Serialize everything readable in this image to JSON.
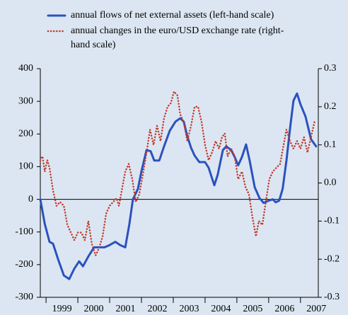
{
  "chart_data": {
    "type": "line",
    "xlim": [
      1998.82,
      2007.56
    ],
    "xticks": [
      {
        "value": 1999.5,
        "label": "1999"
      },
      {
        "value": 2000.5,
        "label": "2000"
      },
      {
        "value": 2001.5,
        "label": "2001"
      },
      {
        "value": 2002.5,
        "label": "2002"
      },
      {
        "value": 2003.5,
        "label": "2003"
      },
      {
        "value": 2004.5,
        "label": "2004"
      },
      {
        "value": 2005.5,
        "label": "2005"
      },
      {
        "value": 2006.5,
        "label": "2006"
      },
      {
        "value": 2007.5,
        "label": "2007"
      }
    ],
    "ylim": [
      -300,
      400
    ],
    "yticks": [
      -300,
      -200,
      -100,
      0,
      100,
      200,
      300,
      400
    ],
    "y2lim": [
      -0.3,
      0.3
    ],
    "y2ticks": [
      -0.3,
      -0.2,
      -0.1,
      {
        "value": 0,
        "label": "0.0"
      },
      0.1,
      0.2,
      0.3
    ],
    "series": [
      {
        "name": "annual flows of net external assets (left-hand scale)",
        "color": "#2a52be",
        "style": "solid",
        "x": [
          1998.82,
          1998.96,
          1999.11,
          1999.22,
          1999.38,
          1999.56,
          1999.73,
          1999.89,
          2000.04,
          2000.16,
          2000.33,
          2000.51,
          2000.67,
          2000.84,
          2001.0,
          2001.18,
          2001.33,
          2001.49,
          2001.62,
          2001.73,
          2001.89,
          2002.0,
          2002.16,
          2002.29,
          2002.4,
          2002.56,
          2002.71,
          2002.89,
          2003.07,
          2003.22,
          2003.33,
          2003.44,
          2003.56,
          2003.67,
          2003.82,
          2004.0,
          2004.11,
          2004.29,
          2004.4,
          2004.56,
          2004.67,
          2004.82,
          2004.93,
          2005.04,
          2005.16,
          2005.29,
          2005.4,
          2005.56,
          2005.71,
          2005.84,
          2006.0,
          2006.13,
          2006.22,
          2006.33,
          2006.44,
          2006.56,
          2006.67,
          2006.78,
          2006.89,
          2007.0,
          2007.16,
          2007.33,
          2007.49
        ],
        "values": [
          0,
          -75,
          -130,
          -136,
          -184,
          -233,
          -244,
          -212,
          -190,
          -205,
          -175,
          -147,
          -147,
          -147,
          -140,
          -130,
          -140,
          -147,
          -76,
          0,
          32,
          86,
          151,
          147,
          119,
          119,
          162,
          210,
          238,
          248,
          238,
          194,
          158,
          134,
          114,
          114,
          97,
          43,
          76,
          151,
          162,
          151,
          130,
          104,
          130,
          168,
          119,
          37,
          4,
          -11,
          -4,
          0,
          -9,
          -4,
          32,
          119,
          216,
          302,
          324,
          291,
          253,
          184,
          162
        ]
      },
      {
        "name": "annual changes in the euro/USD exchange rate (right-hand scale)",
        "color": "#c0392b",
        "style": "dotted",
        "axis": "y2",
        "x": [
          1998.82,
          1998.89,
          1998.96,
          1999.04,
          1999.11,
          1999.22,
          1999.33,
          1999.44,
          1999.56,
          1999.67,
          1999.78,
          1999.89,
          2000.0,
          2000.11,
          2000.22,
          2000.33,
          2000.44,
          2000.56,
          2000.67,
          2000.78,
          2000.89,
          2001.0,
          2001.11,
          2001.22,
          2001.29,
          2001.38,
          2001.49,
          2001.6,
          2001.71,
          2001.82,
          2001.93,
          2002.04,
          2002.16,
          2002.27,
          2002.38,
          2002.49,
          2002.6,
          2002.71,
          2002.82,
          2002.93,
          2003.02,
          2003.13,
          2003.22,
          2003.33,
          2003.44,
          2003.56,
          2003.67,
          2003.78,
          2003.89,
          2004.0,
          2004.11,
          2004.22,
          2004.33,
          2004.44,
          2004.53,
          2004.62,
          2004.71,
          2004.82,
          2004.93,
          2005.04,
          2005.16,
          2005.27,
          2005.38,
          2005.49,
          2005.6,
          2005.69,
          2005.8,
          2005.91,
          2006.02,
          2006.13,
          2006.24,
          2006.36,
          2006.47,
          2006.56,
          2006.67,
          2006.78,
          2006.89,
          2007.0,
          2007.11,
          2007.22,
          2007.33,
          2007.44
        ],
        "values": [
          0.06,
          0.07,
          0.03,
          0.06,
          0.04,
          -0.02,
          -0.06,
          -0.05,
          -0.06,
          -0.11,
          -0.13,
          -0.15,
          -0.13,
          -0.13,
          -0.15,
          -0.1,
          -0.16,
          -0.19,
          -0.17,
          -0.14,
          -0.08,
          -0.06,
          -0.05,
          -0.04,
          -0.06,
          -0.02,
          0.03,
          0.05,
          0.01,
          -0.05,
          -0.03,
          0.02,
          0.08,
          0.14,
          0.1,
          0.15,
          0.11,
          0.17,
          0.2,
          0.21,
          0.24,
          0.23,
          0.18,
          0.16,
          0.11,
          0.15,
          0.2,
          0.2,
          0.16,
          0.1,
          0.06,
          0.08,
          0.11,
          0.09,
          0.12,
          0.13,
          0.07,
          0.09,
          0.07,
          0.01,
          0.03,
          -0.01,
          -0.03,
          -0.09,
          -0.14,
          -0.1,
          -0.11,
          -0.05,
          0.01,
          0.03,
          0.04,
          0.05,
          0.1,
          0.14,
          0.11,
          0.09,
          0.11,
          0.09,
          0.12,
          0.08,
          0.12,
          0.16
        ]
      }
    ]
  }
}
